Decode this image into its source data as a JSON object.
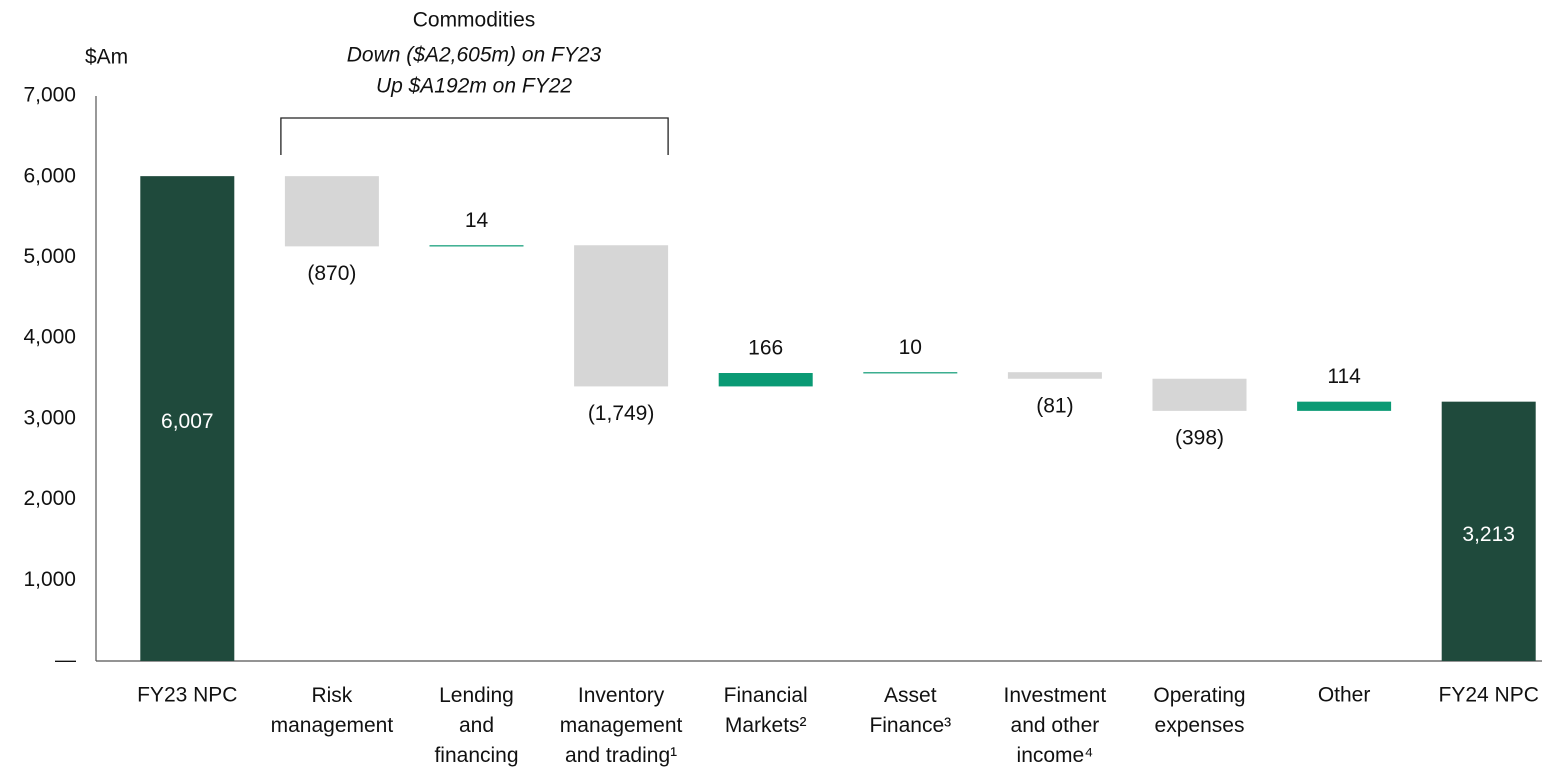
{
  "chart_data": {
    "type": "waterfall",
    "y_unit": "$Am",
    "annotation": {
      "title": "Commodities",
      "lines": [
        "Down ($A2,605m) on FY23",
        "Up $A192m on FY22"
      ]
    },
    "categories": [
      "FY23 NPC",
      "Risk\nmanagement",
      "Lending\nand\nfinancing",
      "Inventory\nmanagement\nand trading¹",
      "Financial\nMarkets²",
      "Asset\nFinance³",
      "Investment\nand other\nincome⁴",
      "Operating\nexpenses",
      "Other",
      "FY24 NPC"
    ],
    "measure": [
      "absolute",
      "relative",
      "relative",
      "relative",
      "relative",
      "relative",
      "relative",
      "relative",
      "relative",
      "absolute"
    ],
    "values": [
      6007,
      -870,
      14,
      -1749,
      166,
      10,
      -81,
      -398,
      114,
      3213
    ],
    "value_labels": [
      "6,007",
      "(870)",
      "14",
      "(1,749)",
      "166",
      "10",
      "(81)",
      "(398)",
      "114",
      "3,213"
    ],
    "total_color": "#1f4a3c",
    "increase_color": "#0a9a74",
    "decrease_color": "#d6d6d6",
    "ylim": [
      0,
      7000
    ],
    "yticks": [
      {
        "value": 0,
        "label": "—"
      },
      {
        "value": 1000,
        "label": "1,000"
      },
      {
        "value": 2000,
        "label": "2,000"
      },
      {
        "value": 3000,
        "label": "3,000"
      },
      {
        "value": 4000,
        "label": "4,000"
      },
      {
        "value": 5000,
        "label": "5,000"
      },
      {
        "value": 6000,
        "label": "6,000"
      },
      {
        "value": 7000,
        "label": "7,000"
      }
    ]
  }
}
